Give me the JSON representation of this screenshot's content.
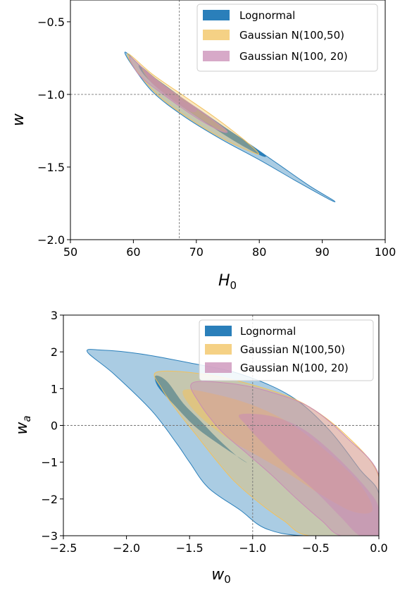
{
  "chart_data": [
    {
      "type": "contour",
      "xlabel_main": "H",
      "xlabel_sub": "0",
      "ylabel": "w",
      "xlim": [
        50,
        100
      ],
      "ylim": [
        -2.0,
        -0.35
      ],
      "xticks": [
        "50",
        "60",
        "70",
        "80",
        "90",
        "100"
      ],
      "yticks": [
        "−2.0",
        "−1.5",
        "−1.0",
        "−0.5"
      ],
      "xtick_values": [
        50,
        60,
        70,
        80,
        90,
        100
      ],
      "ytick_values": [
        -2.0,
        -1.5,
        -1.0,
        -0.5
      ],
      "reference_lines": {
        "x": 67.3,
        "y": -1.0
      },
      "legend": {
        "placement": "top-right"
      },
      "series": [
        {
          "name": "Lognormal",
          "color": "#2a7fba",
          "outer": [
            [
              58.8,
              -0.71
            ],
            [
              62,
              -0.84
            ],
            [
              66,
              -0.97
            ],
            [
              71,
              -1.13
            ],
            [
              77,
              -1.3
            ],
            [
              83,
              -1.48
            ],
            [
              88,
              -1.63
            ],
            [
              91.8,
              -1.73
            ],
            [
              91,
              -1.72
            ],
            [
              86,
              -1.6
            ],
            [
              80,
              -1.45
            ],
            [
              74,
              -1.31
            ],
            [
              68,
              -1.15
            ],
            [
              63,
              -0.98
            ],
            [
              59.5,
              -0.78
            ]
          ],
          "inner": [
            [
              61,
              -0.8
            ],
            [
              65,
              -0.94
            ],
            [
              70,
              -1.09
            ],
            [
              75,
              -1.24
            ],
            [
              79,
              -1.36
            ],
            [
              81,
              -1.42
            ],
            [
              80.2,
              -1.42
            ],
            [
              76,
              -1.32
            ],
            [
              71,
              -1.18
            ],
            [
              66,
              -1.03
            ],
            [
              62,
              -0.88
            ]
          ]
        },
        {
          "name": "Gaussian N(100,50)",
          "color": "#f2c15c",
          "outer": [
            [
              59.2,
              -0.72
            ],
            [
              63,
              -0.86
            ],
            [
              68,
              -1.01
            ],
            [
              73,
              -1.16
            ],
            [
              77.5,
              -1.31
            ],
            [
              79.8,
              -1.4
            ],
            [
              79,
              -1.4
            ],
            [
              74,
              -1.3
            ],
            [
              69,
              -1.17
            ],
            [
              64,
              -1.01
            ],
            [
              60.2,
              -0.82
            ]
          ],
          "inner": [
            [
              61.5,
              -0.82
            ],
            [
              65,
              -0.94
            ],
            [
              69,
              -1.06
            ],
            [
              73,
              -1.19
            ],
            [
              74.8,
              -1.25
            ],
            [
              73.8,
              -1.25
            ],
            [
              70,
              -1.15
            ],
            [
              66,
              -1.03
            ],
            [
              62.5,
              -0.9
            ]
          ]
        },
        {
          "name": "Gaussian N(100, 20)",
          "color": "#c98cb5",
          "outer": [
            [
              59.5,
              -0.74
            ],
            [
              63,
              -0.88
            ],
            [
              67.5,
              -1.02
            ],
            [
              71.5,
              -1.14
            ],
            [
              74.8,
              -1.25
            ],
            [
              73.8,
              -1.25
            ],
            [
              70,
              -1.16
            ],
            [
              66,
              -1.04
            ],
            [
              62,
              -0.91
            ],
            [
              60.3,
              -0.83
            ]
          ],
          "inner": [
            [
              61.8,
              -0.83
            ],
            [
              64.5,
              -0.93
            ],
            [
              67.5,
              -1.03
            ],
            [
              70,
              -1.1
            ],
            [
              69.2,
              -1.12
            ],
            [
              66.5,
              -1.05
            ],
            [
              63.5,
              -0.95
            ],
            [
              62.2,
              -0.88
            ]
          ]
        }
      ]
    },
    {
      "type": "contour",
      "xlabel_main": "w",
      "xlabel_sub": "0",
      "ylabel_main": "w",
      "ylabel_sub": "a",
      "xlim": [
        -2.5,
        0.0
      ],
      "ylim": [
        -3,
        3
      ],
      "xticks": [
        "−2.5",
        "−2.0",
        "−1.5",
        "−1.0",
        "−0.5",
        "0.0"
      ],
      "yticks": [
        "−3",
        "−2",
        "−1",
        "0",
        "1",
        "2",
        "3"
      ],
      "xtick_values": [
        -2.5,
        -2.0,
        -1.5,
        -1.0,
        -0.5,
        0.0
      ],
      "ytick_values": [
        -3,
        -2,
        -1,
        0,
        1,
        2,
        3
      ],
      "reference_lines": {
        "x": -1.0,
        "y": 0.0
      },
      "legend": {
        "placement": "top-right"
      },
      "series": [
        {
          "name": "Lognormal",
          "color": "#2a7fba",
          "outer": [
            [
              -2.31,
              2.0
            ],
            [
              -2.2,
              2.05
            ],
            [
              -1.9,
              1.95
            ],
            [
              -1.5,
              1.7
            ],
            [
              -1.1,
              1.4
            ],
            [
              -0.7,
              0.8
            ],
            [
              -0.4,
              -0.1
            ],
            [
              -0.15,
              -1.2
            ],
            [
              0.0,
              -1.85
            ],
            [
              0.0,
              -3.0
            ],
            [
              -0.6,
              -3.0
            ],
            [
              -0.9,
              -2.8
            ],
            [
              -1.1,
              -2.3
            ],
            [
              -1.35,
              -1.7
            ],
            [
              -1.5,
              -1.0
            ],
            [
              -1.6,
              -0.5
            ],
            [
              -1.8,
              0.4
            ],
            [
              -2.1,
              1.4
            ]
          ],
          "inner": [
            [
              -1.77,
              1.35
            ],
            [
              -1.68,
              1.2
            ],
            [
              -1.55,
              0.6
            ],
            [
              -1.42,
              0.15
            ],
            [
              -1.28,
              -0.35
            ],
            [
              -1.12,
              -0.85
            ],
            [
              -1.05,
              -1.0
            ],
            [
              -1.25,
              -0.55
            ],
            [
              -1.45,
              -0.05
            ],
            [
              -1.62,
              0.55
            ],
            [
              -1.75,
              1.05
            ]
          ]
        },
        {
          "name": "Gaussian N(100,50)",
          "color": "#f2c15c",
          "outer": [
            [
              -1.76,
              1.45
            ],
            [
              -1.4,
              1.4
            ],
            [
              -1.0,
              1.1
            ],
            [
              -0.6,
              0.6
            ],
            [
              -0.25,
              -0.3
            ],
            [
              0.0,
              -1.4
            ],
            [
              0.0,
              -3.0
            ],
            [
              -0.55,
              -3.0
            ],
            [
              -0.75,
              -2.6
            ],
            [
              -0.95,
              -2.1
            ],
            [
              -1.15,
              -1.5
            ],
            [
              -1.3,
              -0.9
            ],
            [
              -1.45,
              -0.25
            ],
            [
              -1.6,
              0.4
            ],
            [
              -1.72,
              1.0
            ]
          ],
          "inner": [
            [
              -1.55,
              0.95
            ],
            [
              -1.3,
              0.85
            ],
            [
              -1.0,
              0.55
            ],
            [
              -0.7,
              0.05
            ],
            [
              -0.4,
              -0.75
            ],
            [
              -0.15,
              -1.6
            ],
            [
              -0.05,
              -2.3
            ],
            [
              -0.2,
              -2.35
            ],
            [
              -0.45,
              -1.9
            ],
            [
              -0.7,
              -1.35
            ],
            [
              -0.95,
              -0.85
            ],
            [
              -1.2,
              -0.35
            ],
            [
              -1.45,
              0.35
            ]
          ]
        },
        {
          "name": "Gaussian N(100, 20)",
          "color": "#c98cb5",
          "outer": [
            [
              -1.48,
              1.15
            ],
            [
              -1.2,
              1.15
            ],
            [
              -0.9,
              0.95
            ],
            [
              -0.55,
              0.5
            ],
            [
              -0.25,
              -0.35
            ],
            [
              0.0,
              -1.35
            ],
            [
              0.0,
              -3.0
            ],
            [
              -0.3,
              -3.0
            ],
            [
              -0.45,
              -2.6
            ],
            [
              -0.65,
              -2.0
            ],
            [
              -0.85,
              -1.35
            ],
            [
              -1.05,
              -0.75
            ],
            [
              -1.25,
              -0.15
            ],
            [
              -1.42,
              0.6
            ]
          ],
          "inner": [
            [
              -1.1,
              0.3
            ],
            [
              -0.85,
              0.25
            ],
            [
              -0.6,
              -0.1
            ],
            [
              -0.35,
              -0.8
            ],
            [
              -0.1,
              -1.7
            ],
            [
              0.0,
              -2.25
            ],
            [
              0.0,
              -3.0
            ],
            [
              -0.15,
              -3.0
            ],
            [
              -0.3,
              -2.5
            ],
            [
              -0.5,
              -1.8
            ],
            [
              -0.7,
              -1.2
            ],
            [
              -0.9,
              -0.55
            ],
            [
              -1.05,
              0.0
            ]
          ]
        }
      ]
    }
  ]
}
